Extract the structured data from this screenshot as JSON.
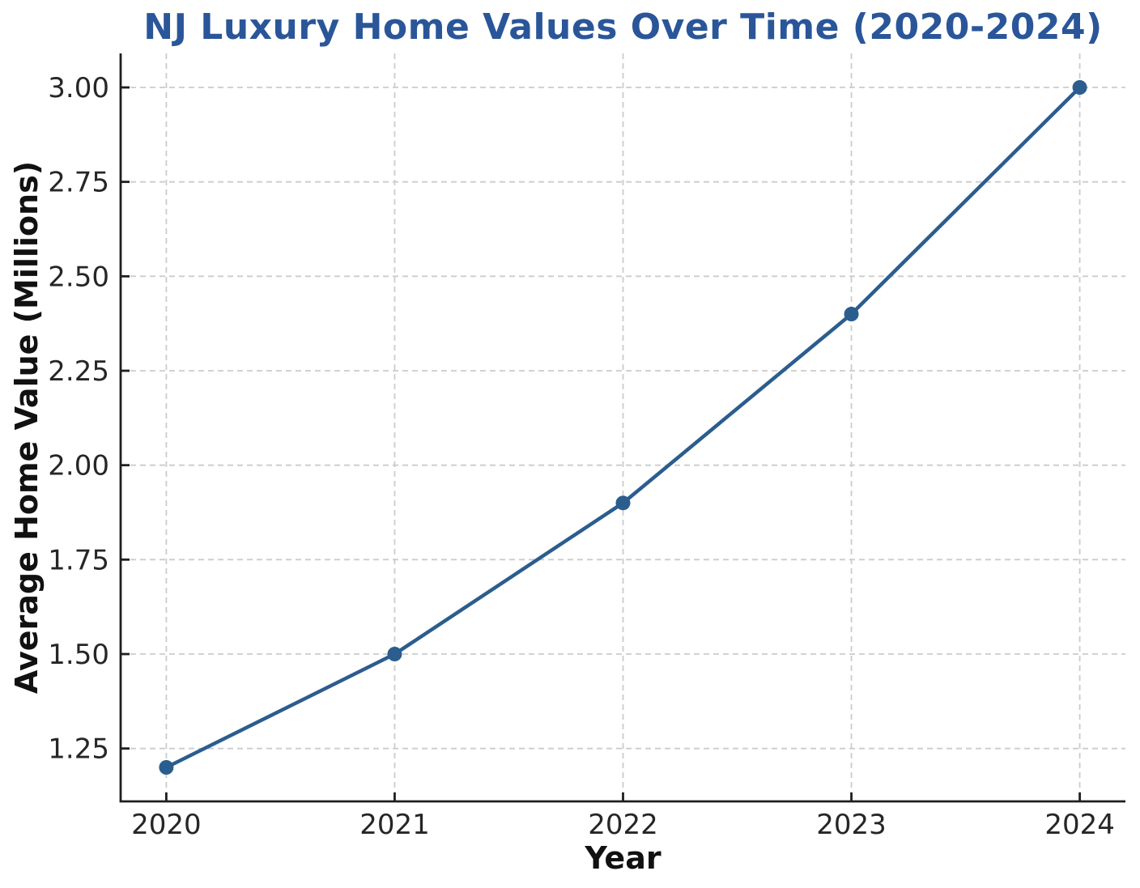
{
  "chart_data": {
    "type": "line",
    "title": "NJ Luxury Home Values Over Time (2020-2024)",
    "xlabel": "Year",
    "ylabel": "Average Home Value (Millions)",
    "x": [
      2020,
      2021,
      2022,
      2023,
      2024
    ],
    "x_tick_labels": [
      "2020",
      "2021",
      "2022",
      "2023",
      "2024"
    ],
    "series": [
      {
        "name": "Average Home Value",
        "values": [
          1.2,
          1.5,
          1.9,
          2.4,
          3.0
        ]
      }
    ],
    "yticks": [
      1.25,
      1.5,
      1.75,
      2.0,
      2.25,
      2.5,
      2.75,
      3.0
    ],
    "y_tick_labels": [
      "1.25",
      "1.50",
      "1.75",
      "2.00",
      "2.25",
      "2.50",
      "2.75",
      "3.00"
    ],
    "xlim": [
      2019.8,
      2024.2
    ],
    "ylim": [
      1.11,
      3.09
    ],
    "grid": true,
    "grid_style": "dashed",
    "legend_position": "none",
    "colors": {
      "line": "#2b5d8e",
      "marker": "#2b5d8e",
      "title": "#2a5699",
      "tick_text": "#262626",
      "axis_label_text": "#111111",
      "spine": "#1f1f1f",
      "grid": "#cccccc",
      "background": "#ffffff"
    }
  }
}
